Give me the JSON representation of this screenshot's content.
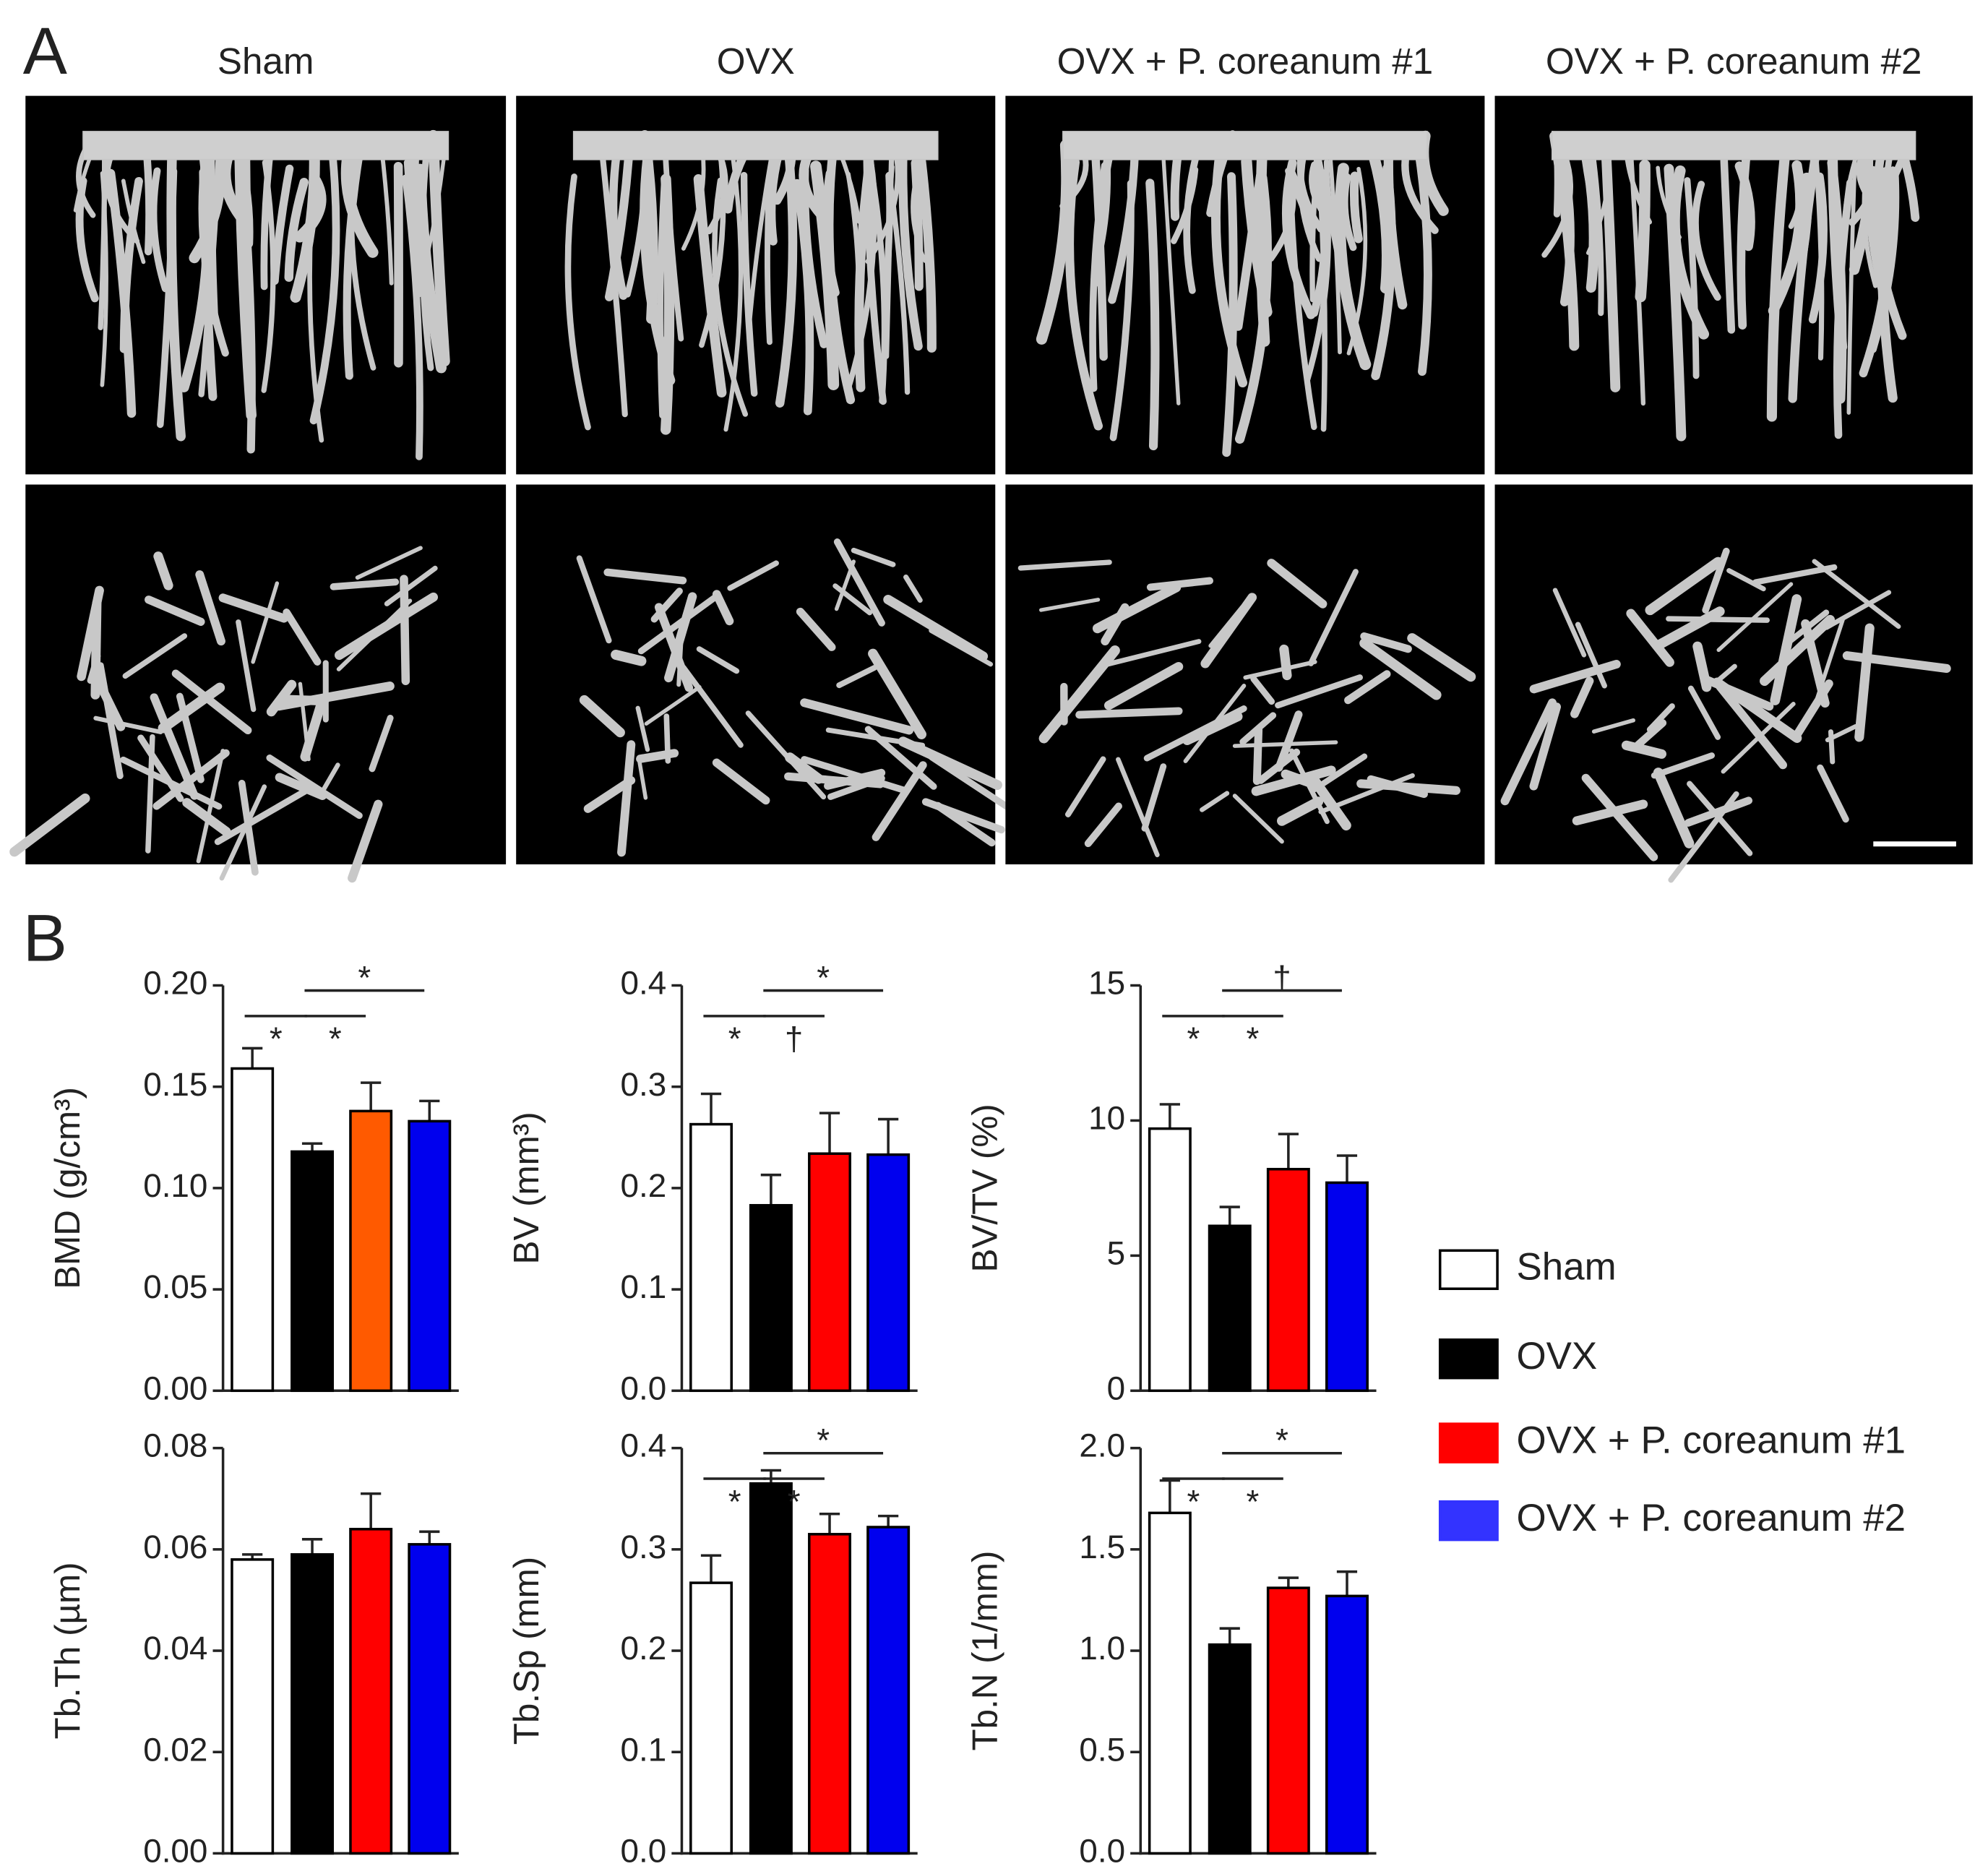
{
  "panel_a": {
    "label": "A",
    "column_titles": [
      "Sham",
      "OVX",
      "OVX + P. coreanum #1",
      "OVX + P. coreanum #2"
    ]
  },
  "panel_b": {
    "label": "B"
  },
  "chart_data": [
    {
      "type": "bar",
      "ylabel": "BMD (g/cm³)",
      "values": [
        0.159,
        0.118,
        0.138,
        0.133
      ],
      "errors": [
        0.01,
        0.004,
        0.014,
        0.01
      ],
      "colors": [
        "#ffffff",
        "#000000",
        "#ff5a00",
        "#0000ee"
      ],
      "ylim": [
        0,
        0.2
      ],
      "yticks": [
        {
          "value": 0,
          "label": "0.00"
        },
        {
          "value": 0.05,
          "label": "0.05"
        },
        {
          "value": 0.1,
          "label": "0.10"
        },
        {
          "value": 0.15,
          "label": "0.15"
        },
        {
          "value": 0.2,
          "label": "0.20"
        }
      ],
      "annotations": [
        {
          "text": "*",
          "groups": [
            0,
            1
          ]
        },
        {
          "text": "*",
          "groups": [
            1,
            2
          ]
        },
        {
          "text": "*",
          "groups": [
            1,
            3
          ]
        }
      ]
    },
    {
      "type": "bar",
      "ylabel": "BV (mm³)",
      "values": [
        0.263,
        0.183,
        0.234,
        0.233
      ],
      "errors": [
        0.03,
        0.03,
        0.04,
        0.035
      ],
      "colors": [
        "#ffffff",
        "#000000",
        "#ff0000",
        "#0000ee"
      ],
      "ylim": [
        0,
        0.4
      ],
      "yticks": [
        {
          "value": 0,
          "label": "0.0"
        },
        0.1,
        0.2,
        0.3,
        0.4
      ],
      "annotations": [
        {
          "text": "*",
          "groups": [
            0,
            1
          ]
        },
        {
          "text": "†",
          "groups": [
            1,
            2
          ]
        },
        {
          "text": "*",
          "groups": [
            1,
            3
          ]
        }
      ]
    },
    {
      "type": "bar",
      "ylabel": "BV/TV (%)",
      "values": [
        9.7,
        6.1,
        8.2,
        7.7
      ],
      "errors": [
        0.9,
        0.7,
        1.3,
        1.0
      ],
      "colors": [
        "#ffffff",
        "#000000",
        "#ff0000",
        "#0000ee"
      ],
      "ylim": [
        0,
        15
      ],
      "yticks": [
        0,
        5,
        10,
        15
      ],
      "annotations": [
        {
          "text": "*",
          "groups": [
            0,
            1
          ]
        },
        {
          "text": "*",
          "groups": [
            1,
            2
          ]
        },
        {
          "text": "†",
          "groups": [
            1,
            3
          ]
        }
      ]
    },
    {
      "type": "bar",
      "ylabel": "Tb.Th (µm)",
      "values": [
        0.058,
        0.059,
        0.064,
        0.061
      ],
      "errors": [
        0.001,
        0.003,
        0.007,
        0.0025
      ],
      "colors": [
        "#ffffff",
        "#000000",
        "#ff0000",
        "#0000ee"
      ],
      "ylim": [
        0,
        0.08
      ],
      "yticks": [
        {
          "value": 0,
          "label": "0.00"
        },
        0.02,
        0.04,
        0.06,
        0.08
      ],
      "annotations": []
    },
    {
      "type": "bar",
      "ylabel": "Tb.Sp (mm)",
      "values": [
        0.267,
        0.365,
        0.315,
        0.322
      ],
      "errors": [
        0.027,
        0.013,
        0.02,
        0.011
      ],
      "colors": [
        "#ffffff",
        "#000000",
        "#ff0000",
        "#0000ee"
      ],
      "ylim": [
        0,
        0.4
      ],
      "yticks": [
        {
          "value": 0,
          "label": "0.0"
        },
        0.1,
        0.2,
        0.3,
        0.4
      ],
      "annotations": [
        {
          "text": "*",
          "groups": [
            0,
            1
          ]
        },
        {
          "text": "*",
          "groups": [
            1,
            2
          ]
        },
        {
          "text": "*",
          "groups": [
            1,
            3
          ]
        }
      ]
    },
    {
      "type": "bar",
      "ylabel": "Tb.N (1/mm)",
      "values": [
        1.68,
        1.03,
        1.31,
        1.27
      ],
      "errors": [
        0.16,
        0.08,
        0.05,
        0.12
      ],
      "colors": [
        "#ffffff",
        "#000000",
        "#ff0000",
        "#0000ee"
      ],
      "ylim": [
        0,
        2
      ],
      "yticks": [
        {
          "value": 0,
          "label": "0.0"
        },
        0.5,
        {
          "value": 1,
          "label": "1.0"
        },
        1.5,
        {
          "value": 2,
          "label": "2.0"
        }
      ],
      "annotations": [
        {
          "text": "*",
          "groups": [
            0,
            1
          ]
        },
        {
          "text": "*",
          "groups": [
            1,
            2
          ]
        },
        {
          "text": "*",
          "groups": [
            1,
            3
          ]
        }
      ]
    }
  ],
  "legend": [
    {
      "name": "Sham",
      "color": "#ffffff"
    },
    {
      "name": "OVX",
      "color": "#000000"
    },
    {
      "name": "OVX + P. coreanum #1",
      "color": "#ff0000"
    },
    {
      "name": "OVX + P. coreanum #2",
      "color": "#3333ff"
    }
  ]
}
